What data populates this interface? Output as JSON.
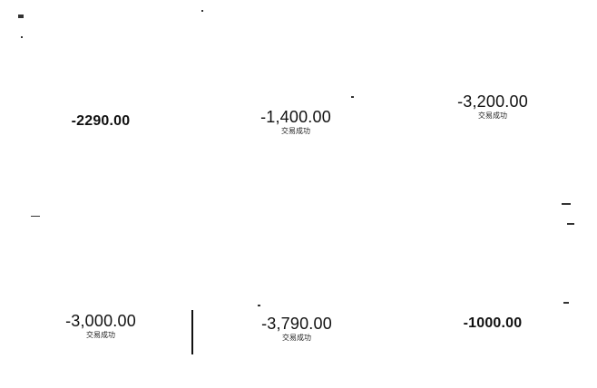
{
  "transactions": [
    {
      "amount": "-2290.00",
      "status": ""
    },
    {
      "amount": "-1,400.00",
      "status": "交易成功"
    },
    {
      "amount": "-3,200.00",
      "status": "交易成功"
    },
    {
      "amount": "-3,000.00",
      "status": "交易成功"
    },
    {
      "amount": "-3,790.00",
      "status": "交易成功"
    },
    {
      "amount": "-1000.00",
      "status": ""
    }
  ]
}
